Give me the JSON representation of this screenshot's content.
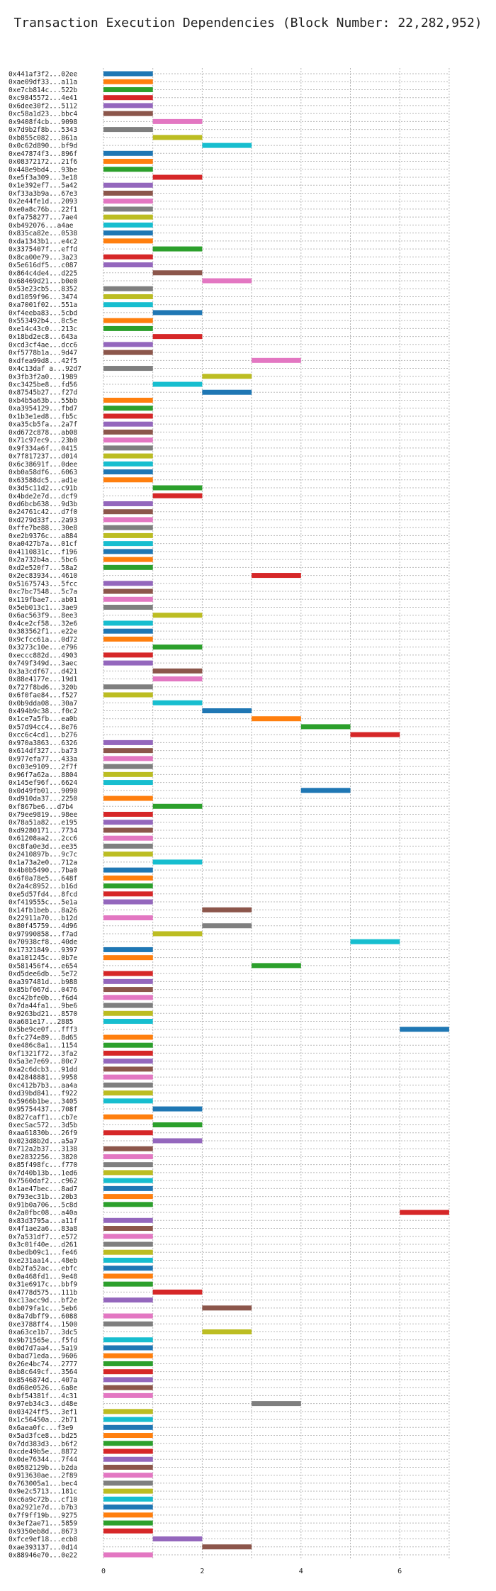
{
  "chart_data": {
    "type": "bar",
    "orientation": "horizontal",
    "title": "Transaction Execution Dependencies (Block Number: 22,282,952)",
    "xlabel": "",
    "ylabel": "",
    "xlim": [
      0,
      7
    ],
    "x_ticks": [
      0,
      2,
      4,
      6
    ],
    "grid": true,
    "categories": [
      "0x441af3f2...02ee",
      "0xae09df33...a11a",
      "0xe7cb814c...522b",
      "0xc9845572...4e41",
      "0x6dee30f2...5112",
      "0xc58a1d23...bbc4",
      "0x9408f4cb...9098",
      "0x7d9b2f8b...5343",
      "0xb855c082...861a",
      "0x0c62d890...bf9d",
      "0xe47874f3...896f",
      "0x08372172...21f6",
      "0x448e9bd4...93be",
      "0xe5f3a309...3e18",
      "0x1e392ef7...5a42",
      "0xf33a3b9a...67e3",
      "0x2e44fe1d...2093",
      "0xe0a8c76b...22f1",
      "0xfa758277...7ae4",
      "0xb492076...a4ae",
      "0x835ca82e...0538",
      "0xda1343b1...e4c2",
      "0x3375407f...effd",
      "0x8ca00e79...3a23",
      "0x5e616df5...c087",
      "0x864c4de4...d225",
      "0x68469d21...b0e0",
      "0x53e23cb5...8352",
      "0xd1059f96...3474",
      "0xa7001f02...551a",
      "0xf4eeba83...5cbd",
      "0x553492b4...8c5e",
      "0xe14c43c0...213c",
      "0x18bd2ec8...643a",
      "0xcd3cf4ae...dcc6",
      "0xf5778b1a...9d47",
      "0xdfea99d8...42f5",
      "0x4c13daf a...92d7",
      "0x3fb3f2a0...1989",
      "0xc3425be8...fd56",
      "0x87545b27...f27d",
      "0xb4b5a63b...55bb",
      "0xa3954129...fbd7",
      "0x1b3e1ed8...fb5c",
      "0xa35cb5fa...2a7f",
      "0xd672c878...ab08",
      "0x71c97ec9...23b0",
      "0x9f334a6f...0415",
      "0x7f817237...d014",
      "0x6c38691f...0dee",
      "0xb0a58df6...6063",
      "0x63588dc5...ad1e",
      "0x3d5c11d2...c91b",
      "0x4bde2e7d...dcf9",
      "0xd6bcb638...9d3b",
      "0x24761c42...d7f0",
      "0xd279d33f...2a93",
      "0xffe7be88...30e8",
      "0xe2b9376c...a884",
      "0xa0427b7a...01cf",
      "0x4110831c...f196",
      "0x2a732b4a...5bc6",
      "0xd2e520f7...58a2",
      "0x2ec83934...4610",
      "0x51675743...5fcc",
      "0xc7bc7548...5c7a",
      "0x119fbae7...ab01",
      "0x5eb013c1...3ae9",
      "0x6ac563f9...8ee3",
      "0x4ce2cf58...32e6",
      "0x383562f1...e22e",
      "0x9cfcc61a...0d72",
      "0x3273c10e...e796",
      "0xeccc882d...4903",
      "0x749f349d...3aec",
      "0x3a3cdf67...d421",
      "0x88e4177e...19d1",
      "0x727f8bd6...320b",
      "0x6f0fae84...f527",
      "0x0b9dda08...30a7",
      "0x494b9c38...f0c2",
      "0x1ce7a5fb...ea0b",
      "0x57d94cc4...8e76",
      "0xcc6c4cd1...b276",
      "0x970a3863...6326",
      "0x614df327...ba73",
      "0x977efa77...433a",
      "0xc03e9109...2f7f",
      "0x96f7a62a...8804",
      "0x145ef96f...6624",
      "0x0d49fb01...9090",
      "0xd910da37...2250",
      "0xf867be6...d7b4",
      "0x79ee9819...98ee",
      "0x78a51a82...e195",
      "0xd9280171...7734",
      "0x61208aa2...2cc6",
      "0xc8fa0e3d...ee35",
      "0x2410897b...9c7c",
      "0x1a73a2e0...712a",
      "0x4b0b5490...7ba0",
      "0x6f0a78e5...648f",
      "0x2a4c8952...b16d",
      "0xe5d57fd4...8fcd",
      "0xf419555c...5e1a",
      "0x14fb1beb...8a26",
      "0x22911a70...b12d",
      "0x80f45759...4d96",
      "0x97990858...f7ad",
      "0x70938cf8...40de",
      "0x17321849...9397",
      "0xa101245c...0b7e",
      "0x581456f4...e654",
      "0xd5dee6db...5e72",
      "0xa397481d...b988",
      "0x85bf067d...0476",
      "0xc42bfe0b...f6d4",
      "0x7da44fa1...9be6",
      "0x9263bd21...8570",
      "0xa681e17...2885",
      "0x5be9ce0f...fff3",
      "0xfc274e89...8d65",
      "0xe486c8a1...1154",
      "0xf1321f72...3fa2",
      "0x5a3e7e69...80c7",
      "0xa2c6dcb3...91dd",
      "0x42848881...9958",
      "0xc412b7b3...aa4a",
      "0xd39bd841...f922",
      "0x5966b1be...3405",
      "0x95754437...708f",
      "0x827caff1...cb7e",
      "0xecSac572...3d5b",
      "0xaa61830b...26f9",
      "0x023d8b2d...a5a7",
      "0x712a2b37...3138",
      "0xe2832256...3820",
      "0x85f498fc...f770",
      "0x7d40b13b...1ed6",
      "0x7560daf2...c962",
      "0x1ae47bec...8ad7",
      "0x793ec31b...20b3",
      "0x91b0a706...5c8d",
      "0x2a0fbc08...a40a",
      "0x83d3795a...a11f",
      "0x4f1ae2a6...83a8",
      "0x7a531df7...e572",
      "0x3c01f40e...d261",
      "0xbedb09c1...fe46",
      "0xe231aa14...48eb",
      "0xb2fa52ac...ebfc",
      "0x0a468fd1...9e48",
      "0x31e6917c...bbf9",
      "0x4778d575...111b",
      "0xc13acc9d...bf2e",
      "0xb079fa1c...5eb6",
      "0x8a7dbff9...6088",
      "0xe3788ff4...1500",
      "0xa63ce1b7...3dc5",
      "0x9b71565e...f5fd",
      "0x0d7d7aa4...5a19",
      "0xbad71eda...9606",
      "0x26e4bc74...2777",
      "0xb8c649cf...3564",
      "0x8546874d...407a",
      "0xd68e0526...6a8e",
      "0xbf54381f...4c31",
      "0x97eb34c3...d48e",
      "0x03424ff5...3ef1",
      "0x1c56450a...2b71",
      "0x6aea0fc...f3e9",
      "0x5ad3fce8...bd25",
      "0x7dd383d3...b6f2",
      "0xcde49b5e...8872",
      "0x0de76344...7f44",
      "0x0582129b...b2da",
      "0x913630ae...2f89",
      "0x763005a1...bec4",
      "0x9e2c5713...181c",
      "0xc6a9c72b...cf10",
      "0xa2921e7d...b7b3",
      "0x7f9ff19b...9275",
      "0x3ef2ae71...5859",
      "0x9350eb8d...8673",
      "0xfce9ef18...ecb8",
      "0xae393137...0d14",
      "0x88946e70...0e22"
    ],
    "starts": [
      0,
      0,
      0,
      0,
      0,
      0,
      1,
      0,
      1,
      2,
      0,
      0,
      0,
      1,
      0,
      0,
      0,
      0,
      0,
      0,
      0,
      0,
      1,
      0,
      0,
      1,
      2,
      0,
      0,
      0,
      1,
      0,
      0,
      1,
      0,
      0,
      3,
      0,
      2,
      1,
      2,
      0,
      0,
      0,
      0,
      0,
      0,
      0,
      0,
      0,
      0,
      0,
      1,
      1,
      0,
      0,
      0,
      0,
      0,
      0,
      0,
      0,
      0,
      3,
      0,
      0,
      0,
      0,
      1,
      0,
      0,
      0,
      1,
      0,
      0,
      1,
      1,
      0,
      0,
      1,
      2,
      3,
      4,
      5,
      0,
      0,
      0,
      0,
      0,
      0,
      4,
      0,
      1,
      0,
      0,
      0,
      0,
      0,
      0,
      1,
      0,
      0,
      0,
      0,
      0,
      2,
      0,
      2,
      1,
      5,
      0,
      0,
      3,
      0,
      0,
      0,
      0,
      0,
      0,
      0,
      6,
      0,
      0,
      0,
      0,
      0,
      0,
      0,
      0,
      0,
      1,
      0,
      1,
      0,
      1,
      0,
      0,
      0,
      0,
      0,
      0,
      0,
      0,
      6,
      0,
      0,
      0,
      0,
      0,
      0,
      0,
      0,
      0,
      1,
      0,
      2,
      0,
      0,
      2,
      0,
      0,
      0,
      0,
      0,
      0,
      0,
      0,
      3,
      0,
      0,
      0,
      0,
      0,
      0,
      0,
      0,
      0,
      0,
      0,
      0,
      0,
      0,
      0,
      0,
      1,
      2,
      0
    ],
    "values": [
      1,
      1,
      1,
      1,
      1,
      1,
      1,
      1,
      1,
      1,
      1,
      1,
      1,
      1,
      1,
      1,
      1,
      1,
      1,
      1,
      1,
      1,
      1,
      1,
      1,
      1,
      1,
      1,
      1,
      1,
      1,
      1,
      1,
      1,
      1,
      1,
      1,
      1,
      1,
      1,
      1,
      1,
      1,
      1,
      1,
      1,
      1,
      1,
      1,
      1,
      1,
      1,
      1,
      1,
      1,
      1,
      1,
      1,
      1,
      1,
      1,
      1,
      1,
      1,
      1,
      1,
      1,
      1,
      1,
      1,
      1,
      1,
      1,
      1,
      1,
      1,
      1,
      1,
      1,
      1,
      1,
      1,
      1,
      1,
      1,
      1,
      1,
      1,
      1,
      1,
      1,
      1,
      1,
      1,
      1,
      1,
      1,
      1,
      1,
      1,
      1,
      1,
      1,
      1,
      1,
      1,
      1,
      1,
      1,
      1,
      1,
      1,
      1,
      1,
      1,
      1,
      1,
      1,
      1,
      1,
      1,
      1,
      1,
      1,
      1,
      1,
      1,
      1,
      1,
      1,
      1,
      1,
      1,
      1,
      1,
      1,
      1,
      1,
      1,
      1,
      1,
      1,
      1,
      1,
      1,
      1,
      1,
      1,
      1,
      1,
      1,
      1,
      1,
      1,
      1,
      1,
      1,
      1,
      1,
      1,
      1,
      1,
      1,
      1,
      1,
      1,
      1,
      1,
      1,
      1,
      1,
      1,
      1,
      1,
      1,
      1,
      1,
      1,
      1,
      1,
      1,
      1,
      1,
      1,
      1,
      1,
      1
    ],
    "palette": [
      "#1f77b4",
      "#ff7f0e",
      "#2ca02c",
      "#d62728",
      "#9467bd",
      "#8c564b",
      "#e377c2",
      "#7f7f7f",
      "#bcbd22",
      "#17becf"
    ]
  }
}
